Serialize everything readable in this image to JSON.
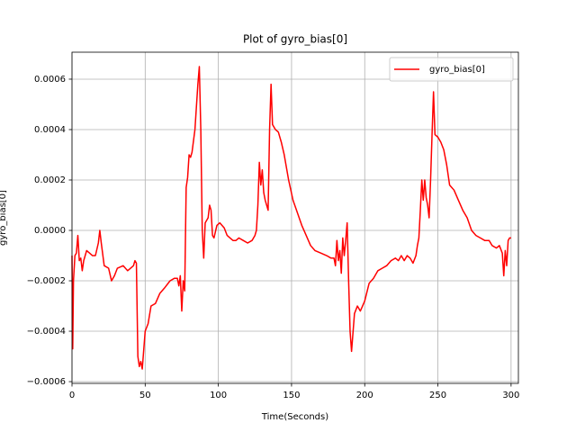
{
  "chart_data": {
    "type": "line",
    "title": "Plot of gyro_bias[0]",
    "x_label": "Time(Seconds)",
    "y_label": "gyro_bias[0]",
    "x": [
      0,
      0.5,
      1,
      2,
      3,
      4,
      5,
      6,
      7,
      8,
      10,
      12,
      14,
      16,
      18,
      19,
      20,
      22,
      25,
      27,
      29,
      31,
      35,
      38,
      40,
      42,
      43,
      44,
      45,
      46,
      47,
      48,
      50,
      52,
      54,
      57,
      60,
      63,
      67,
      70,
      72,
      73,
      74,
      75,
      76,
      77,
      78,
      79,
      80,
      81,
      82,
      84,
      86,
      87,
      88,
      89,
      90,
      91,
      93,
      94,
      95,
      96,
      97,
      99,
      101,
      104,
      106,
      108,
      110,
      112,
      114,
      117,
      120,
      123,
      125,
      126,
      127,
      128,
      129,
      130,
      131,
      132,
      133,
      134,
      135,
      136,
      137,
      139,
      141,
      143,
      145,
      148,
      151,
      154,
      157,
      160,
      163,
      166,
      170,
      174,
      177,
      179,
      180,
      181,
      182,
      183,
      184,
      185,
      186,
      187,
      188,
      189,
      190,
      191,
      193,
      195,
      197,
      200,
      203,
      206,
      209,
      212,
      215,
      218,
      221,
      223,
      225,
      227,
      229,
      231,
      233,
      235,
      236,
      237,
      238,
      239,
      240,
      241,
      242,
      243,
      244,
      245,
      246,
      247,
      248,
      250,
      252,
      254,
      256,
      258,
      261,
      264,
      267,
      270,
      273,
      276,
      279,
      282,
      285,
      287,
      290,
      292,
      294,
      295,
      296,
      297,
      298,
      299,
      300
    ],
    "series": [
      {
        "name": "gyro_bias[0]",
        "color": "#ff0000",
        "values": [
          -0.0001,
          -0.00047,
          -0.0002,
          -0.0001,
          -9e-05,
          -2e-05,
          -0.00012,
          -0.00011,
          -0.00016,
          -0.00012,
          -8e-05,
          -9e-05,
          -0.0001,
          -0.0001,
          -5e-05,
          0,
          -5e-05,
          -0.00014,
          -0.00015,
          -0.0002,
          -0.00018,
          -0.00015,
          -0.00014,
          -0.00016,
          -0.00015,
          -0.00014,
          -0.00012,
          -0.00013,
          -0.0005,
          -0.00054,
          -0.00052,
          -0.00055,
          -0.0004,
          -0.00037,
          -0.0003,
          -0.00029,
          -0.00025,
          -0.00023,
          -0.0002,
          -0.00019,
          -0.00019,
          -0.00022,
          -0.00018,
          -0.00032,
          -0.0002,
          -0.00024,
          0.00017,
          0.00021,
          0.0003,
          0.00029,
          0.00031,
          0.0004,
          0.00058,
          0.00065,
          0.0004,
          0,
          -0.00011,
          3e-05,
          5e-05,
          0.0001,
          8e-05,
          -2e-05,
          -3e-05,
          2e-05,
          3e-05,
          1e-05,
          -2e-05,
          -3e-05,
          -4e-05,
          -4e-05,
          -3e-05,
          -4e-05,
          -5e-05,
          -4e-05,
          -2e-05,
          0,
          0.0001,
          0.00027,
          0.00018,
          0.00024,
          0.00015,
          0.00012,
          0.0001,
          8e-05,
          0.0004,
          0.00058,
          0.00042,
          0.0004,
          0.00039,
          0.00035,
          0.0003,
          0.0002,
          0.00012,
          7e-05,
          2e-05,
          -2e-05,
          -6e-05,
          -8e-05,
          -9e-05,
          -0.0001,
          -0.00011,
          -0.00011,
          -0.00014,
          -4e-05,
          -0.00012,
          -8e-05,
          -0.00017,
          -3e-05,
          -0.0001,
          -4e-05,
          3e-05,
          -0.0002,
          -0.0004,
          -0.00048,
          -0.00033,
          -0.0003,
          -0.00032,
          -0.00028,
          -0.00021,
          -0.00019,
          -0.00016,
          -0.00015,
          -0.00014,
          -0.00012,
          -0.00011,
          -0.00012,
          -0.0001,
          -0.00012,
          -0.0001,
          -0.00011,
          -0.00013,
          -0.0001,
          -6e-05,
          -3e-05,
          8e-05,
          0.0002,
          0.00012,
          0.0002,
          0.00013,
          0.0001,
          5e-05,
          0.0002,
          0.00038,
          0.00055,
          0.00038,
          0.00037,
          0.00035,
          0.00032,
          0.00026,
          0.00018,
          0.00016,
          0.00012,
          8e-05,
          5e-05,
          0,
          -2e-05,
          -3e-05,
          -4e-05,
          -4e-05,
          -6e-05,
          -7e-05,
          -6e-05,
          -9e-05,
          -0.00018,
          -8e-05,
          -0.00014,
          -4e-05,
          -3e-05,
          -3e-05
        ]
      }
    ],
    "xlim": [
      0,
      305
    ],
    "xticks": [
      0,
      50,
      100,
      150,
      200,
      250,
      300
    ],
    "ylim": [
      -0.000607,
      0.000707
    ],
    "yticks": [
      {
        "value": -0.0006,
        "label": "−0.0006"
      },
      {
        "value": -0.0004,
        "label": "−0.0004"
      },
      {
        "value": -0.0002,
        "label": "−0.0002"
      },
      {
        "value": 0,
        "label": "0.0000"
      },
      0.0002,
      0.0004,
      0.0006
    ],
    "grid": true,
    "legend": "upper right"
  }
}
